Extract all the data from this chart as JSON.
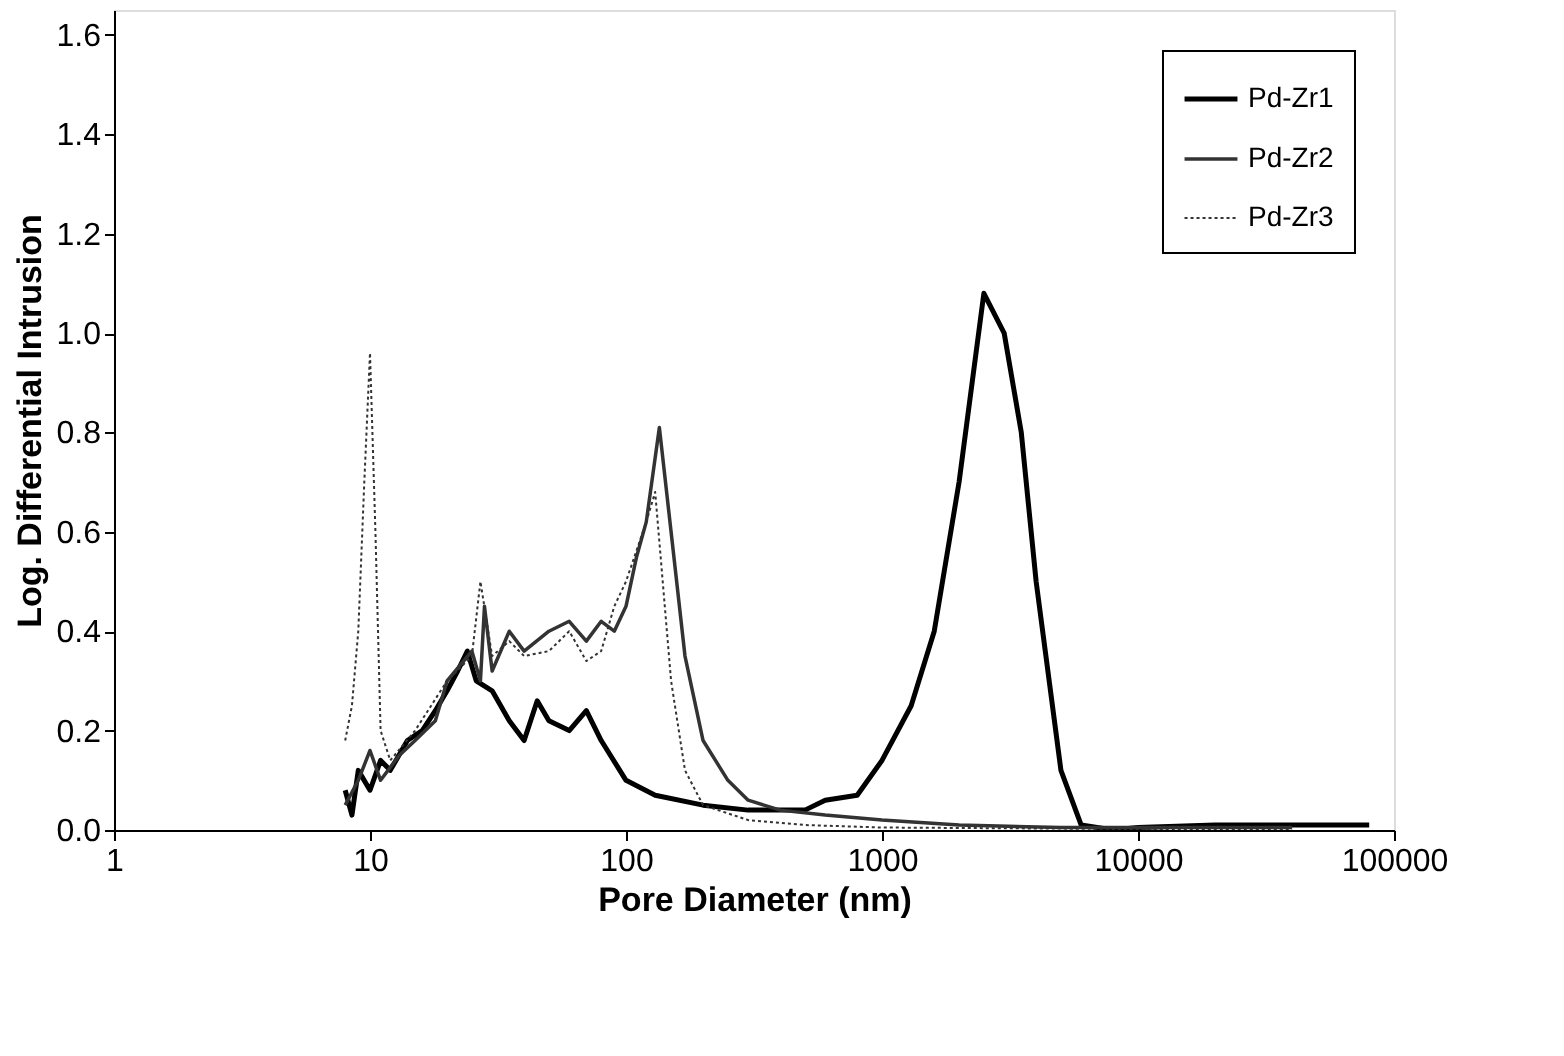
{
  "chart_data": {
    "type": "line",
    "xlabel": "Pore Diameter (nm)",
    "ylabel": "Log. Differential  Intrusion",
    "log": "x",
    "grid": false,
    "legend": "top right",
    "marker": "none",
    "xlim": [
      1,
      100000
    ],
    "xticks": [
      1,
      10,
      100,
      1000,
      10000,
      100000
    ],
    "ylim": [
      0,
      1.65
    ],
    "yticks": [
      {
        "value": 0,
        "label": "0.0"
      },
      {
        "value": 0.2,
        "label": "0.2"
      },
      {
        "value": 0.4,
        "label": "0.4"
      },
      {
        "value": 0.6,
        "label": "0.6"
      },
      {
        "value": 0.8,
        "label": "0.8"
      },
      {
        "value": 1.0,
        "label": "1.0"
      },
      {
        "value": 1.2,
        "label": "1.2"
      },
      {
        "value": 1.4,
        "label": "1.4"
      },
      {
        "value": 1.6,
        "label": "1.6"
      }
    ],
    "series": [
      {
        "name": "Pd-Zr1",
        "color": "#000000",
        "line_style": "solid",
        "x": [
          8,
          8.5,
          9,
          10,
          11,
          12,
          14,
          16,
          18,
          20,
          22,
          24,
          26,
          30,
          35,
          40,
          45,
          50,
          60,
          70,
          80,
          100,
          130,
          200,
          300,
          500,
          600,
          800,
          1000,
          1300,
          1600,
          2000,
          2500,
          3000,
          3500,
          4000,
          5000,
          6000,
          8000,
          10000,
          20000,
          80000
        ],
        "values": [
          0.08,
          0.03,
          0.12,
          0.08,
          0.14,
          0.12,
          0.18,
          0.2,
          0.24,
          0.28,
          0.32,
          0.36,
          0.3,
          0.28,
          0.22,
          0.18,
          0.26,
          0.22,
          0.2,
          0.24,
          0.18,
          0.1,
          0.07,
          0.05,
          0.04,
          0.04,
          0.06,
          0.07,
          0.14,
          0.25,
          0.4,
          0.7,
          1.08,
          1.0,
          0.8,
          0.5,
          0.12,
          0.01,
          0.0,
          0.005,
          0.01,
          0.01
        ]
      },
      {
        "name": "Pd-Zr2",
        "color": "#333333",
        "line_style": "solid",
        "x": [
          8,
          9,
          10,
          11,
          13,
          15,
          18,
          20,
          25,
          27,
          28,
          30,
          35,
          40,
          50,
          60,
          70,
          80,
          90,
          100,
          110,
          120,
          135,
          150,
          170,
          200,
          250,
          300,
          400,
          600,
          1000,
          2000,
          5000,
          10000,
          40000
        ],
        "values": [
          0.05,
          0.1,
          0.16,
          0.1,
          0.15,
          0.18,
          0.22,
          0.3,
          0.36,
          0.3,
          0.45,
          0.32,
          0.4,
          0.36,
          0.4,
          0.42,
          0.38,
          0.42,
          0.4,
          0.45,
          0.55,
          0.62,
          0.81,
          0.6,
          0.35,
          0.18,
          0.1,
          0.06,
          0.04,
          0.03,
          0.02,
          0.01,
          0.005,
          0.005,
          0.005
        ]
      },
      {
        "name": "Pd-Zr3",
        "color": "#333333",
        "line_style": "dotted",
        "x": [
          8,
          8.5,
          9,
          9.5,
          10,
          10.5,
          11,
          12,
          15,
          20,
          25,
          27,
          30,
          35,
          40,
          50,
          60,
          70,
          80,
          90,
          100,
          120,
          130,
          150,
          170,
          200,
          300,
          500,
          1000,
          40000
        ],
        "values": [
          0.18,
          0.25,
          0.4,
          0.7,
          0.96,
          0.6,
          0.2,
          0.14,
          0.2,
          0.3,
          0.35,
          0.5,
          0.35,
          0.38,
          0.35,
          0.36,
          0.4,
          0.34,
          0.36,
          0.45,
          0.5,
          0.62,
          0.68,
          0.3,
          0.12,
          0.05,
          0.02,
          0.01,
          0.005,
          0.0
        ]
      }
    ]
  }
}
